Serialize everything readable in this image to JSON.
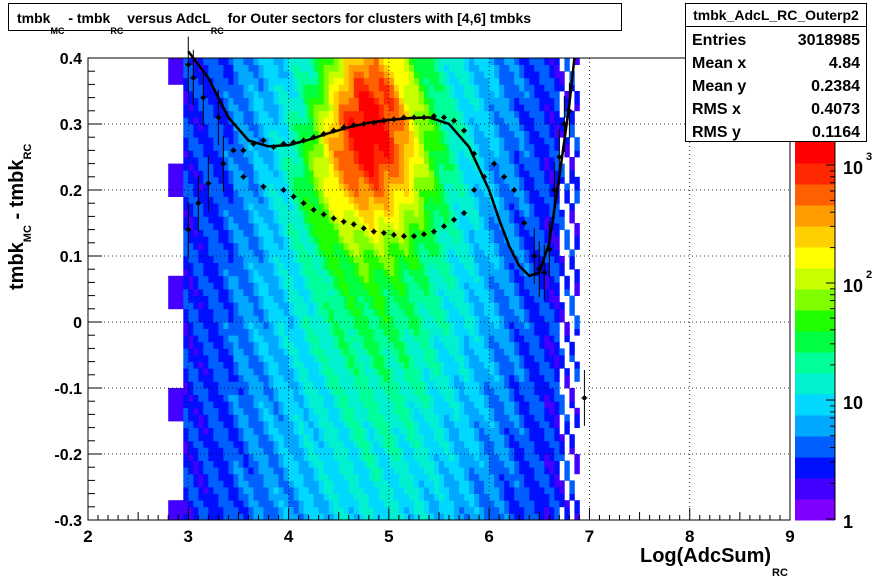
{
  "title": {
    "parts": [
      "tmbk",
      "MC",
      " - tmbk",
      "RC",
      " versus AdcL",
      "RC",
      " for Outer sectors for clusters with [4,6] tmbks"
    ]
  },
  "stats": {
    "name": "tmbk_AdcL_RC_Outerp2",
    "rows": [
      {
        "key": "Entries",
        "value": "3018985"
      },
      {
        "key": "Mean x",
        "value": "4.84"
      },
      {
        "key": "Mean y",
        "value": "0.2384"
      },
      {
        "key": "RMS x",
        "value": "0.4073"
      },
      {
        "key": "RMS y",
        "value": "0.1164"
      }
    ]
  },
  "colors": {
    "palette": [
      "#7f00ff",
      "#4400ff",
      "#0010ff",
      "#0060ff",
      "#00a8ff",
      "#00d8ff",
      "#00f0d0",
      "#00ff99",
      "#00ff40",
      "#20ff00",
      "#80ff00",
      "#c8ff00",
      "#ffff00",
      "#ffd000",
      "#ff9c00",
      "#ff6000",
      "#ff2800",
      "#ff0000"
    ],
    "markers": "#000000",
    "frame": "#000000"
  },
  "chart_data": {
    "type": "heatmap",
    "xlabel": "Log(AdcSum)",
    "xlabel_sub": "RC",
    "ylabel_parts": [
      "tmbk",
      "MC",
      " - tmbk",
      "RC"
    ],
    "xlim": [
      2,
      9
    ],
    "ylim": [
      -0.3,
      0.4
    ],
    "x_ticks": [
      "2",
      "3",
      "4",
      "5",
      "6",
      "7",
      "8",
      "9"
    ],
    "y_ticks": [
      "-0.3",
      "-0.2",
      "-0.1",
      "0",
      "0.1",
      "0.2",
      "0.3",
      "0.4"
    ],
    "z_scale": "log",
    "z_ticks": [
      {
        "base": "10",
        "exp": "3"
      },
      {
        "base": "10",
        "exp": "2"
      },
      {
        "base": "10",
        "exp": ""
      },
      {
        "base": "1",
        "exp": ""
      }
    ],
    "grid": true,
    "heatmap_x_range": [
      2.8,
      6.9
    ],
    "fit_curve": {
      "x": [
        3.0,
        3.2,
        3.4,
        3.6,
        3.8,
        4.0,
        4.2,
        4.4,
        4.6,
        4.8,
        5.0,
        5.2,
        5.4,
        5.6,
        5.8,
        6.0,
        6.1,
        6.2,
        6.3,
        6.4,
        6.5,
        6.6,
        6.7,
        6.8,
        6.85
      ],
      "y": [
        0.41,
        0.37,
        0.31,
        0.275,
        0.266,
        0.268,
        0.276,
        0.286,
        0.295,
        0.302,
        0.306,
        0.309,
        0.31,
        0.3,
        0.265,
        0.2,
        0.155,
        0.115,
        0.085,
        0.07,
        0.075,
        0.12,
        0.22,
        0.33,
        0.4
      ]
    },
    "mean_profile": {
      "x": [
        3.0,
        3.05,
        3.15,
        3.3,
        3.45,
        3.55,
        3.65,
        3.75,
        3.85,
        3.95,
        4.05,
        4.15,
        4.25,
        4.35,
        4.45,
        4.55,
        4.65,
        4.75,
        4.85,
        4.95,
        5.05,
        5.15,
        5.25,
        5.35,
        5.45,
        5.55,
        5.65,
        5.75,
        5.85,
        5.95,
        6.05,
        6.15,
        6.25,
        6.35,
        6.45,
        6.5,
        6.55,
        6.6,
        6.65,
        6.7,
        6.75,
        6.8,
        6.95
      ],
      "y": [
        0.39,
        0.37,
        0.34,
        0.31,
        0.26,
        0.26,
        0.27,
        0.275,
        0.265,
        0.27,
        0.272,
        0.275,
        0.28,
        0.285,
        0.29,
        0.295,
        0.298,
        0.3,
        0.302,
        0.305,
        0.307,
        0.31,
        0.31,
        0.31,
        0.312,
        0.31,
        0.305,
        0.29,
        0.255,
        0.22,
        0.24,
        0.22,
        0.2,
        0.15,
        0.1,
        0.08,
        0.075,
        0.11,
        0.2,
        0.25,
        0.3,
        0.32,
        -0.115
      ]
    },
    "low_profile": {
      "x": [
        3.0,
        3.1,
        3.2,
        3.35,
        3.55,
        3.75,
        3.95,
        4.05,
        4.15,
        4.25,
        4.35,
        4.45,
        4.55,
        4.65,
        4.75,
        4.85,
        4.95,
        5.05,
        5.15,
        5.25,
        5.35,
        5.45,
        5.55,
        5.65,
        5.75,
        5.85
      ],
      "y": [
        0.14,
        0.18,
        0.21,
        0.24,
        0.22,
        0.205,
        0.2,
        0.19,
        0.18,
        0.17,
        0.163,
        0.157,
        0.152,
        0.148,
        0.142,
        0.137,
        0.135,
        0.132,
        0.13,
        0.13,
        0.133,
        0.137,
        0.145,
        0.155,
        0.165,
        0.2
      ]
    }
  }
}
